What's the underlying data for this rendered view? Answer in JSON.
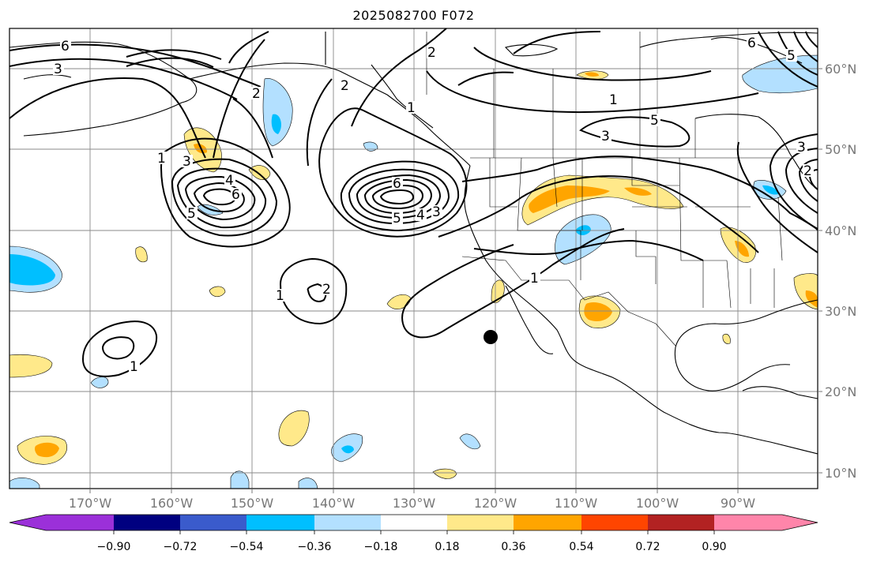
{
  "title": "2025082700 F072",
  "map": {
    "lon_labels": [
      "170°W",
      "160°W",
      "150°W",
      "140°W",
      "130°W",
      "120°W",
      "110°W",
      "100°W",
      "90°W"
    ],
    "lat_labels": [
      "60°N",
      "50°N",
      "40°N",
      "30°N",
      "20°N",
      "10°N"
    ],
    "contour_labels": [
      "6",
      "3",
      "2",
      "1",
      "2",
      "3",
      "4",
      "5",
      "6",
      "2",
      "1",
      "2",
      "1",
      "6",
      "5",
      "4",
      "3",
      "1",
      "3",
      "5",
      "1",
      "3",
      "2",
      "1",
      "5",
      "6"
    ],
    "marker": "point-marker"
  },
  "colorbar": {
    "ticks": [
      "−0.90",
      "−0.72",
      "−0.54",
      "−0.36",
      "−0.18",
      "0.18",
      "0.36",
      "0.54",
      "0.72",
      "0.90"
    ],
    "colors": [
      "#9b30d9",
      "#000080",
      "#3a5bcc",
      "#00bfff",
      "#b3e0ff",
      "#ffffff",
      "#ffe98a",
      "#ffa500",
      "#ff4500",
      "#b22222",
      "#ff85aa"
    ]
  }
}
